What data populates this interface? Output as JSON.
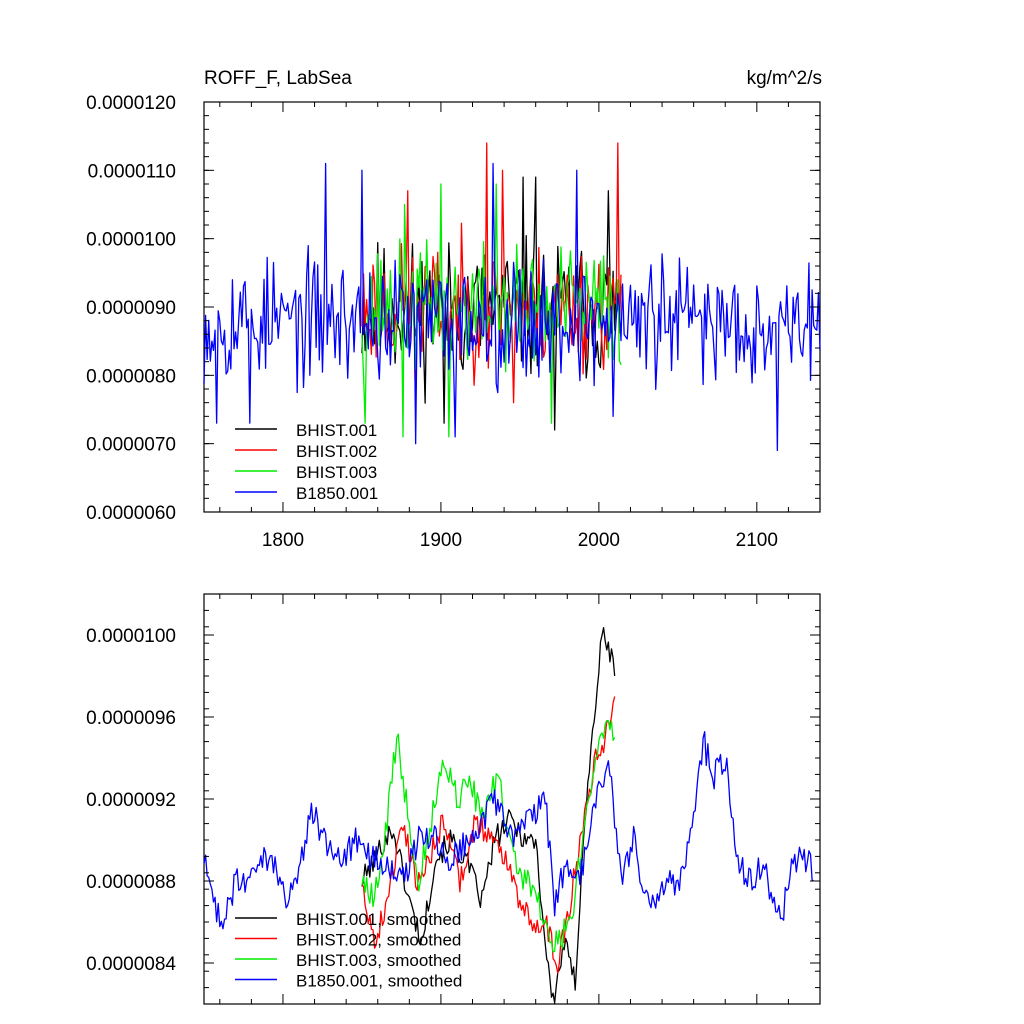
{
  "chart_data": [
    {
      "type": "line",
      "title_left": "ROFF_F, LabSea",
      "title_right": "kg/m^2/s",
      "xlim": [
        1750,
        2140
      ],
      "ylim": [
        6e-06,
        1.2e-05
      ],
      "xticks": [
        1800,
        1900,
        2000,
        2100
      ],
      "x_tick_labels": [
        "1800",
        "1900",
        "2000",
        "2100"
      ],
      "yticks": [
        6e-06,
        7e-06,
        8e-06,
        9e-06,
        1e-05,
        1.1e-05,
        1.2e-05
      ],
      "y_tick_labels": [
        "0.0000060",
        "0.0000070",
        "0.0000080",
        "0.0000090",
        "0.0000100",
        "0.0000110",
        "0.0000120"
      ],
      "legend_position": "bottom-left",
      "series": [
        {
          "name": "BHIST.001",
          "color": "#000000",
          "x_range": [
            1850,
            2014
          ],
          "mean": 8.95e-06,
          "amp": 9e-07,
          "seed": 11,
          "peaks": [
            [
              1952,
              1.09e-05
            ],
            [
              1960,
              1.09e-05
            ],
            [
              2006,
              1.07e-05
            ],
            [
              1972,
              7.2e-06
            ],
            [
              1902,
              7.3e-06
            ]
          ]
        },
        {
          "name": "BHIST.002",
          "color": "#ff0000",
          "x_range": [
            1850,
            2014
          ],
          "mean": 9e-06,
          "amp": 8e-07,
          "seed": 23,
          "peaks": [
            [
              1879,
              1.07e-05
            ],
            [
              1929,
              1.14e-05
            ],
            [
              1939,
              1.1e-05
            ],
            [
              2012,
              1.14e-05
            ],
            [
              1946,
              7.6e-06
            ],
            [
              1884,
              7.5e-06
            ]
          ]
        },
        {
          "name": "BHIST.003",
          "color": "#00ee00",
          "x_range": [
            1850,
            2014
          ],
          "mean": 9e-06,
          "amp": 8e-07,
          "seed": 37,
          "peaks": [
            [
              1877,
              1.05e-05
            ],
            [
              1900,
              1.08e-05
            ],
            [
              1935,
              1.08e-05
            ],
            [
              1852,
              7.3e-06
            ],
            [
              1876,
              7.1e-06
            ],
            [
              1905,
              7.1e-06
            ],
            [
              1970,
              7.3e-06
            ]
          ]
        },
        {
          "name": "B1850.001",
          "color": "#0000ff",
          "x_range": [
            1750,
            2140
          ],
          "mean": 8.8e-06,
          "amp": 8e-07,
          "seed": 53,
          "peaks": [
            [
              1827,
              1.11e-05
            ],
            [
              1850,
              1.1e-05
            ],
            [
              1986,
              1.1e-05
            ],
            [
              1933,
              1.11e-05
            ],
            [
              1884,
              7e-06
            ],
            [
              1909,
              7.1e-06
            ],
            [
              2113,
              6.9e-06
            ],
            [
              1758,
              7.3e-06
            ],
            [
              1779,
              7.3e-06
            ],
            [
              2009,
              7.4e-06
            ]
          ]
        }
      ]
    },
    {
      "type": "line",
      "xlim": [
        1750,
        2140
      ],
      "ylim": [
        8.2e-06,
        1.02e-05
      ],
      "xticks": [
        1800,
        1900,
        2000,
        2100
      ],
      "yticks": [
        8.4e-06,
        8.8e-06,
        9.2e-06,
        9.6e-06,
        1e-05
      ],
      "y_tick_labels": [
        "0.0000084",
        "0.0000088",
        "0.0000092",
        "0.0000096",
        "0.0000100"
      ],
      "legend_position": "bottom-left",
      "series": [
        {
          "name": "BHIST.001, smoothed",
          "color": "#000000",
          "seed": 101,
          "wiggle": 1.2e-07,
          "points": [
            [
              1850,
              8.8e-06
            ],
            [
              1858,
              8.9e-06
            ],
            [
              1864,
              9e-06
            ],
            [
              1870,
              9.05e-06
            ],
            [
              1880,
              8.7e-06
            ],
            [
              1888,
              8.5e-06
            ],
            [
              1896,
              8.9e-06
            ],
            [
              1906,
              9e-06
            ],
            [
              1916,
              8.9e-06
            ],
            [
              1926,
              8.7e-06
            ],
            [
              1934,
              9e-06
            ],
            [
              1944,
              9.1e-06
            ],
            [
              1954,
              9e-06
            ],
            [
              1960,
              9e-06
            ],
            [
              1966,
              8.5e-06
            ],
            [
              1971,
              8.2e-06
            ],
            [
              1978,
              8.5e-06
            ],
            [
              1985,
              8.3e-06
            ],
            [
              1990,
              9e-06
            ],
            [
              1997,
              9.6e-06
            ],
            [
              2002,
              1e-05
            ],
            [
              2008,
              9.9e-06
            ],
            [
              2010,
              9.8e-06
            ]
          ]
        },
        {
          "name": "BHIST.002, smoothed",
          "color": "#ff0000",
          "seed": 202,
          "wiggle": 1.2e-07,
          "points": [
            [
              1850,
              8.8e-06
            ],
            [
              1858,
              8.5e-06
            ],
            [
              1866,
              8.7e-06
            ],
            [
              1876,
              9.1e-06
            ],
            [
              1884,
              8.8e-06
            ],
            [
              1892,
              8.9e-06
            ],
            [
              1902,
              9.1e-06
            ],
            [
              1912,
              8.8e-06
            ],
            [
              1922,
              9.1e-06
            ],
            [
              1932,
              9e-06
            ],
            [
              1942,
              8.9e-06
            ],
            [
              1950,
              8.7e-06
            ],
            [
              1958,
              8.6e-06
            ],
            [
              1966,
              8.6e-06
            ],
            [
              1974,
              8.4e-06
            ],
            [
              1982,
              8.7e-06
            ],
            [
              1990,
              9.1e-06
            ],
            [
              1998,
              9.4e-06
            ],
            [
              2004,
              9.5e-06
            ],
            [
              2010,
              9.7e-06
            ]
          ]
        },
        {
          "name": "BHIST.003, smoothed",
          "color": "#00ee00",
          "seed": 303,
          "wiggle": 1.4e-07,
          "points": [
            [
              1850,
              8.8e-06
            ],
            [
              1858,
              8.7e-06
            ],
            [
              1866,
              9.1e-06
            ],
            [
              1872,
              9.5e-06
            ],
            [
              1878,
              9.2e-06
            ],
            [
              1886,
              8.8e-06
            ],
            [
              1894,
              9.1e-06
            ],
            [
              1902,
              9.4e-06
            ],
            [
              1910,
              9.2e-06
            ],
            [
              1918,
              9.3e-06
            ],
            [
              1926,
              9.1e-06
            ],
            [
              1936,
              9.3e-06
            ],
            [
              1946,
              8.9e-06
            ],
            [
              1954,
              8.8e-06
            ],
            [
              1962,
              8.7e-06
            ],
            [
              1970,
              8.5e-06
            ],
            [
              1976,
              8.5e-06
            ],
            [
              1984,
              8.7e-06
            ],
            [
              1992,
              9.1e-06
            ],
            [
              2000,
              9.5e-06
            ],
            [
              2006,
              9.6e-06
            ],
            [
              2010,
              9.5e-06
            ]
          ]
        },
        {
          "name": "B1850.001, smoothed",
          "color": "#0000ff",
          "seed": 404,
          "wiggle": 1.4e-07,
          "points": [
            [
              1750,
              8.9e-06
            ],
            [
              1756,
              8.7e-06
            ],
            [
              1762,
              8.6e-06
            ],
            [
              1770,
              8.8e-06
            ],
            [
              1778,
              8.8e-06
            ],
            [
              1786,
              8.9e-06
            ],
            [
              1794,
              8.9e-06
            ],
            [
              1802,
              8.7e-06
            ],
            [
              1812,
              8.9e-06
            ],
            [
              1818,
              9.15e-06
            ],
            [
              1826,
              9e-06
            ],
            [
              1836,
              8.9e-06
            ],
            [
              1846,
              9e-06
            ],
            [
              1856,
              8.9e-06
            ],
            [
              1866,
              8.9e-06
            ],
            [
              1876,
              8.8e-06
            ],
            [
              1886,
              9e-06
            ],
            [
              1896,
              9e-06
            ],
            [
              1906,
              8.9e-06
            ],
            [
              1916,
              9e-06
            ],
            [
              1926,
              9.1e-06
            ],
            [
              1936,
              9.2e-06
            ],
            [
              1946,
              9e-06
            ],
            [
              1956,
              9.1e-06
            ],
            [
              1966,
              9.2e-06
            ],
            [
              1972,
              8.7e-06
            ],
            [
              1980,
              8.9e-06
            ],
            [
              1988,
              8.8e-06
            ],
            [
              1996,
              9.1e-06
            ],
            [
              2006,
              9.4e-06
            ],
            [
              2014,
              8.8e-06
            ],
            [
              2022,
              9e-06
            ],
            [
              2030,
              8.7e-06
            ],
            [
              2036,
              8.7e-06
            ],
            [
              2044,
              8.8e-06
            ],
            [
              2052,
              8.8e-06
            ],
            [
              2060,
              9.1e-06
            ],
            [
              2066,
              9.5e-06
            ],
            [
              2072,
              9.3e-06
            ],
            [
              2080,
              9.4e-06
            ],
            [
              2088,
              8.9e-06
            ],
            [
              2096,
              8.8e-06
            ],
            [
              2104,
              8.9e-06
            ],
            [
              2110,
              8.7e-06
            ],
            [
              2116,
              8.6e-06
            ],
            [
              2122,
              8.9e-06
            ],
            [
              2128,
              8.9e-06
            ],
            [
              2134,
              8.9e-06
            ],
            [
              2136,
              8.8e-06
            ]
          ]
        }
      ]
    }
  ]
}
